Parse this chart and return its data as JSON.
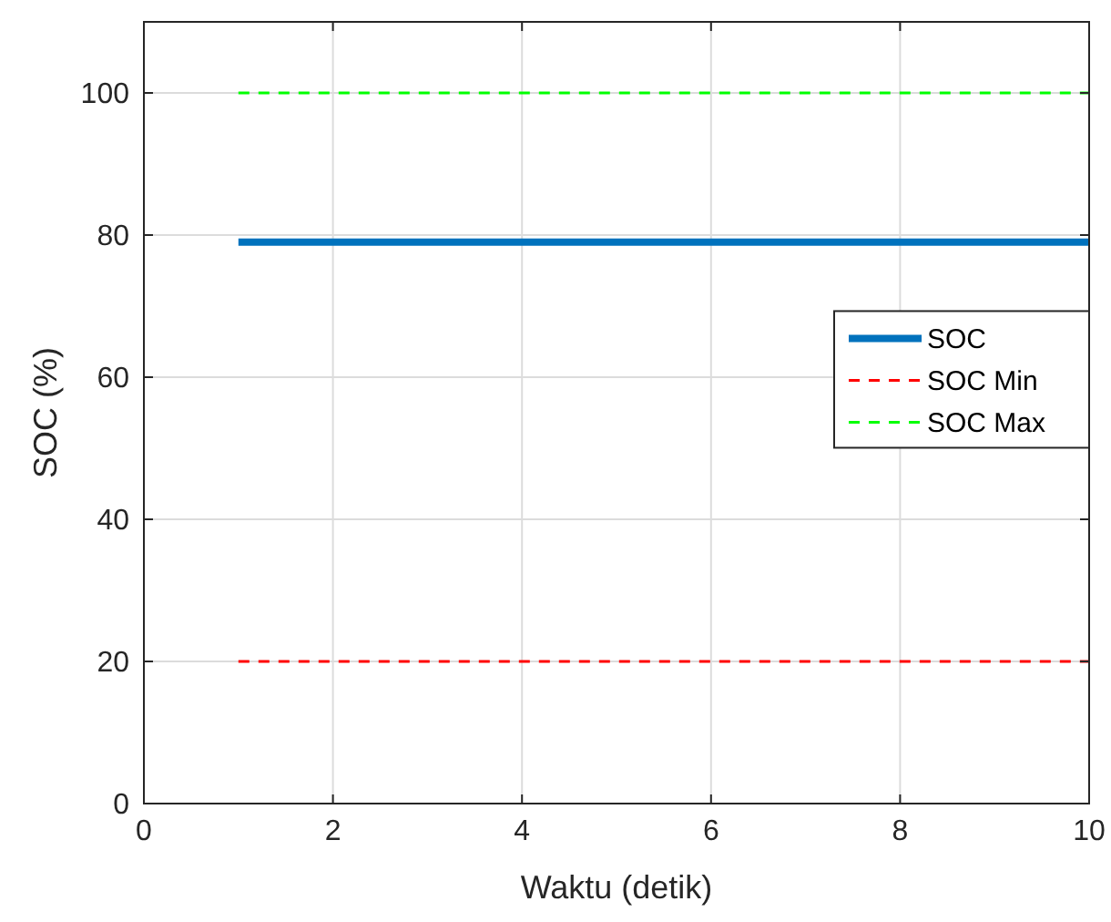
{
  "chart_data": {
    "type": "line",
    "xlabel": "Waktu (detik)",
    "ylabel": "SOC (%)",
    "x": [
      1,
      10
    ],
    "series": [
      {
        "name": "SOC",
        "color": "#0072bd",
        "values": [
          79,
          79
        ],
        "line_style": "solid"
      },
      {
        "name": "SOC Min",
        "color": "#ff0000",
        "values": [
          20,
          20
        ],
        "line_style": "dashed"
      },
      {
        "name": "SOC Max",
        "color": "#00ff00",
        "values": [
          100,
          100
        ],
        "line_style": "dashed"
      }
    ],
    "xlim": [
      0,
      10
    ],
    "xticks": [
      0,
      2,
      4,
      6,
      8,
      10
    ],
    "ylim": [
      0,
      110
    ],
    "yticks": [
      0,
      20,
      40,
      60,
      80,
      100
    ],
    "grid": true,
    "legend": "right",
    "marker": "none"
  }
}
